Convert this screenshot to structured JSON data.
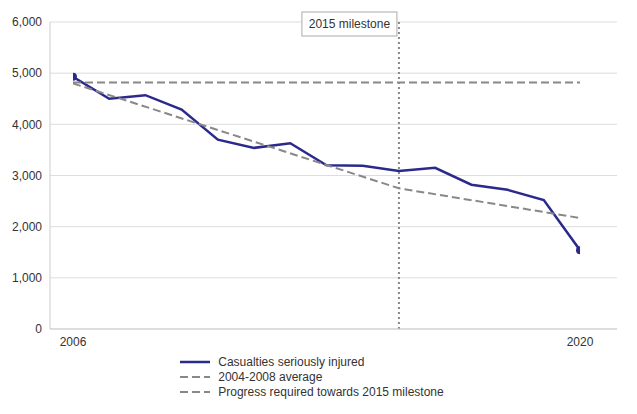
{
  "chart_data": {
    "type": "line",
    "xlim": [
      2006,
      2020
    ],
    "xticks": [
      2006,
      2020
    ],
    "ylim": [
      0,
      6000
    ],
    "yticks": [
      0,
      {
        "value": 1000,
        "label": "1,000"
      },
      {
        "value": 2000,
        "label": "2,000"
      },
      {
        "value": 3000,
        "label": "3,000"
      },
      {
        "value": 4000,
        "label": "4,000"
      },
      {
        "value": 5000,
        "label": "5,000"
      },
      {
        "value": 6000,
        "label": "6,000"
      }
    ],
    "grid": true,
    "legend": "bottom",
    "annotations": [
      {
        "text": "2015 milestone",
        "x": 2015
      }
    ],
    "series": [
      {
        "name": "Casualties seriously injured",
        "color": "#2b2a8c",
        "line_style": "solid",
        "marker": "endpoints",
        "x": [
          2006,
          2007,
          2008,
          2009,
          2010,
          2011,
          2012,
          2013,
          2014,
          2015,
          2016,
          2017,
          2018,
          2019,
          2020
        ],
        "values": [
          4930,
          4500,
          4570,
          4290,
          3700,
          3540,
          3630,
          3200,
          3190,
          3090,
          3150,
          2820,
          2720,
          2520,
          1540
        ]
      },
      {
        "name": "2004-2008 average",
        "color": "#888888",
        "line_style": "dashed",
        "x": [
          2006,
          2020
        ],
        "values": [
          4820,
          4820
        ]
      },
      {
        "name": "Progress required towards 2015 milestone",
        "color": "#888888",
        "line_style": "dashed",
        "x": [
          2006,
          2015,
          2020
        ],
        "values": [
          4800,
          2750,
          2170
        ]
      }
    ]
  }
}
